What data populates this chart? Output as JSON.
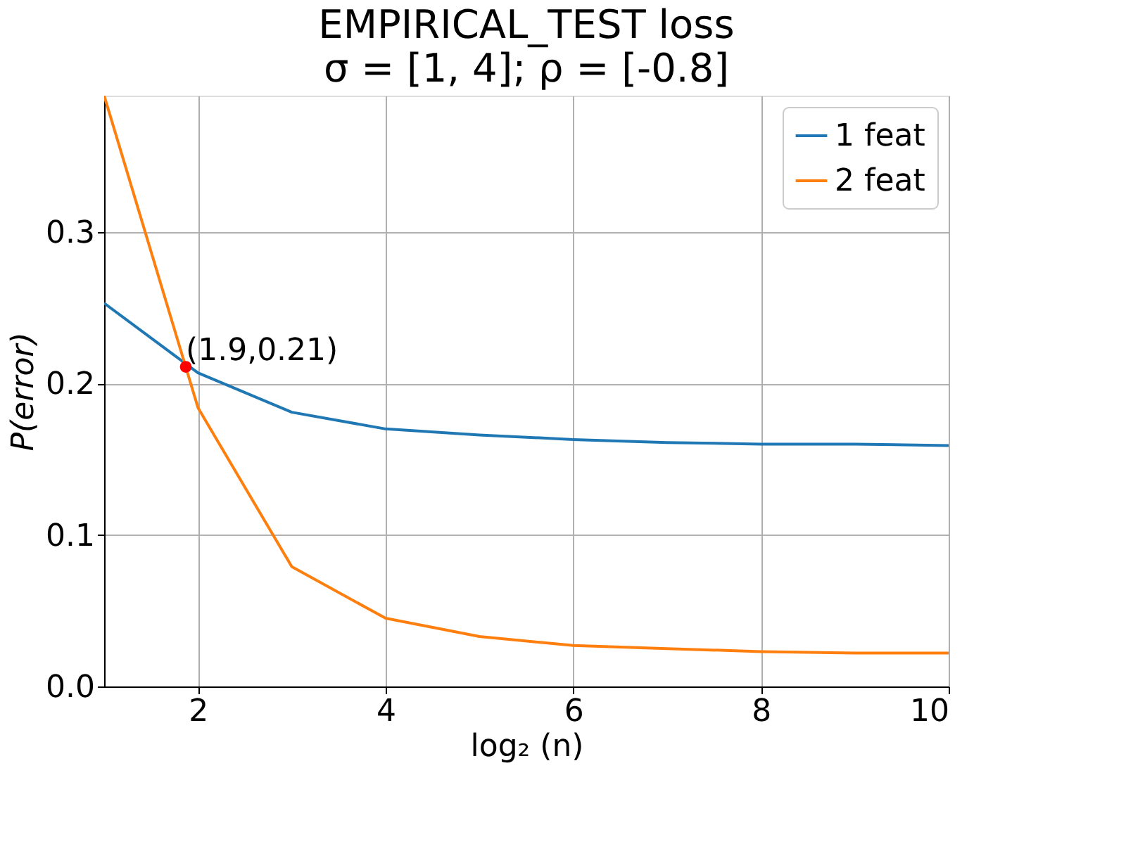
{
  "chart_data": {
    "type": "line",
    "title": "EMPIRICAL_TEST loss",
    "subtitle": "σ = [1, 4];  ρ = [-0.8]",
    "xlabel": "log₂ (n)",
    "ylabel": "P(error)",
    "x": [
      1,
      2,
      3,
      4,
      5,
      6,
      7,
      8,
      9,
      10
    ],
    "series": [
      {
        "name": "1 feat",
        "color": "#1f77b4",
        "values": [
          0.253,
          0.207,
          0.181,
          0.17,
          0.166,
          0.163,
          0.161,
          0.16,
          0.16,
          0.159
        ]
      },
      {
        "name": "2 feat",
        "color": "#ff7f0e",
        "values": [
          0.39,
          0.184,
          0.079,
          0.045,
          0.033,
          0.027,
          0.025,
          0.023,
          0.022,
          0.022
        ]
      },
      {
        "type": "scatter",
        "color": "#ff0000",
        "marker": "circle",
        "x": [
          1.87
        ],
        "values": [
          0.211
        ]
      }
    ],
    "annotations": [
      {
        "text": "(1.9,0.21)",
        "x": 1.87,
        "y": 0.211
      }
    ],
    "xlim": [
      1,
      10
    ],
    "xticks": [
      2,
      4,
      6,
      8,
      10
    ],
    "ylim": [
      0,
      0.39
    ],
    "yticks": [
      {
        "value": 0,
        "label": "0.0"
      },
      0.1,
      0.2,
      0.3
    ],
    "grid": true,
    "legend": "top right",
    "line_style": "solid"
  }
}
